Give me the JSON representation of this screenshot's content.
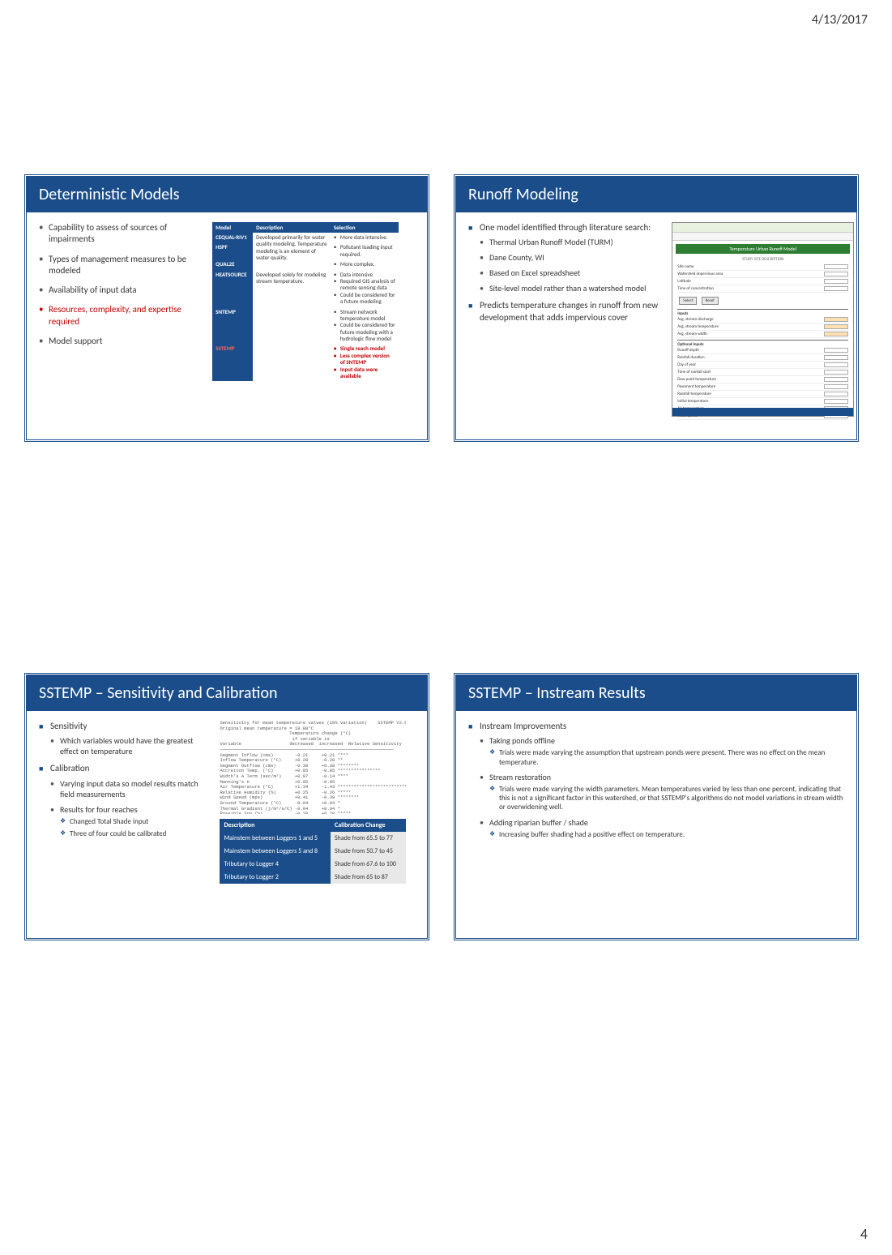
{
  "page": {
    "date": "4/13/2017",
    "number": "4"
  },
  "slide1": {
    "title": "Deterministic Models",
    "bullets": [
      {
        "text": "Capability to assess of sources of impairments",
        "red": false
      },
      {
        "text": "Types of management measures to be modeled",
        "red": false
      },
      {
        "text": "Availability of input data",
        "red": false
      },
      {
        "text": "Resources, complexity, and expertise required",
        "red": true
      },
      {
        "text": "Model support",
        "red": false
      }
    ],
    "table": {
      "headers": [
        "Model",
        "Description",
        "Selection"
      ],
      "groups": [
        {
          "desc": "Developed primarily for water quality modeling. Temperature modeling is an element of water quality.",
          "rows": [
            {
              "model": "CEQUAL-RIV1",
              "sel": [
                "More data intensive."
              ]
            },
            {
              "model": "HSPF",
              "sel": [
                "Pollutant loading input required."
              ]
            },
            {
              "model": "QUAL2E",
              "sel": [
                "More complex."
              ]
            }
          ]
        },
        {
          "desc": "Developed solely for modeling stream temperature.",
          "rows": [
            {
              "model": "HEATSOURCE",
              "sel": [
                "Data intensive",
                "Required GIS analysis of remote sensing data",
                "Could be considered for a future modeling"
              ]
            },
            {
              "model": "SNTEMP",
              "sel": [
                "Stream network temperature model",
                "Could be considered for future modeling with a hydrologic flow model"
              ]
            },
            {
              "model": "SSTEMP",
              "red": true,
              "sel": [
                "Single reach model",
                "Less complex version of SNTEMP",
                "Input data were available"
              ],
              "selRed": true
            }
          ]
        }
      ]
    }
  },
  "slide2": {
    "title": "Runoff Modeling",
    "bullets": [
      {
        "text": "One model identified through literature search:",
        "sub": [
          "Thermal Urban Runoff Model (TURM)",
          "Dane County, WI",
          "Based on Excel spreadsheet",
          "Site-level model rather than a watershed model"
        ]
      },
      {
        "text": "Predicts temperature changes in runoff from new development that adds impervious cover"
      }
    ],
    "excel": {
      "title": "Temperature Urban Runoff Model",
      "subtitle": "STUDY SITE DESCRIPTION"
    }
  },
  "slide3": {
    "title": "SSTEMP – Sensitivity and Calibration",
    "sensitivity": {
      "heading": "Sensitivity",
      "sub": [
        "Which variables would have the greatest effect on temperature"
      ]
    },
    "calibration": {
      "heading": "Calibration",
      "sub": [
        "Varying input data so model results match field measurements",
        "Results for four reaches"
      ],
      "diamonds": [
        "Changed Total Shade input",
        "Three of four could be calibrated"
      ]
    },
    "sens_text": "Sensitivity for mean temperature values (10% variation)    SSTEMP V2.0.8)\nOriginal mean temperature = 19.88°C\n                          Temperature change (°C)\n                           if variable is\nVariable                  decreased  increased  Relative Sensitivity\n─────────────────────────────────────────────────────────────────\nSegment Inflow (cms)        -0.21     +0.21 ****\nInflow Temperature (°C)     +0.28     -0.28 **\nSegment Outflow (cms)       -0.38     +0.38 ********\nAccretion Temp. (°C)        +0.85     -0.85 ****************\nWidth's A Term (sec/m²)     +0.07     -0.14 ****\nManning's n                 +0.05     -0.05\nAir Temperature (°C)        +1.34     -1.43 ******************************\nRelative Humidity (%)       +0.25     -0.26 *****\nWind Speed (mps)            +0.41     -0.39 ********\nGround Temperature (°C)     -0.04     +0.04 *\nThermal Gradient (j/m²/s/C) -0.04     +0.04 *\nPossible Sun (%)            -0.28     +0.28 *****\nDust Coefficient            +0.07     -0.05 *\nGround Reflectivity (%)     +0.06     -0.06 *\nTotal Shade (%)             +0.44     -0.44 *********",
    "table": {
      "headers": [
        "Description",
        "Calibration Change"
      ],
      "rows": [
        [
          "Mainstem between Loggers 1 and 5",
          "Shade from 65.5 to 77"
        ],
        [
          "Mainstem between Loggers 5 and 8",
          "Shade from 50.7 to 45"
        ],
        [
          "Tributary to Logger 4",
          "Shade from 67.6 to 100"
        ],
        [
          "Tributary to Logger 2",
          "Shade from 65 to 87"
        ]
      ]
    }
  },
  "slide4": {
    "title": "SSTEMP – Instream Results",
    "heading": "Instream Improvements",
    "items": [
      {
        "name": "Taking ponds offline",
        "notes": [
          "Trials were made varying the assumption that upstream ponds were present. There was no effect on the mean temperature."
        ]
      },
      {
        "name": "Stream restoration",
        "notes": [
          "Trials were made varying the width parameters. Mean temperatures varied by less than one percent, indicating that this is not a significant factor in this watershed, or that SSTEMP's algorithms do not model variations in stream width or overwidening well."
        ]
      },
      {
        "name": "Adding riparian buffer / shade",
        "notes": [
          "Increasing buffer shading had a positive effect on temperature."
        ]
      }
    ]
  }
}
